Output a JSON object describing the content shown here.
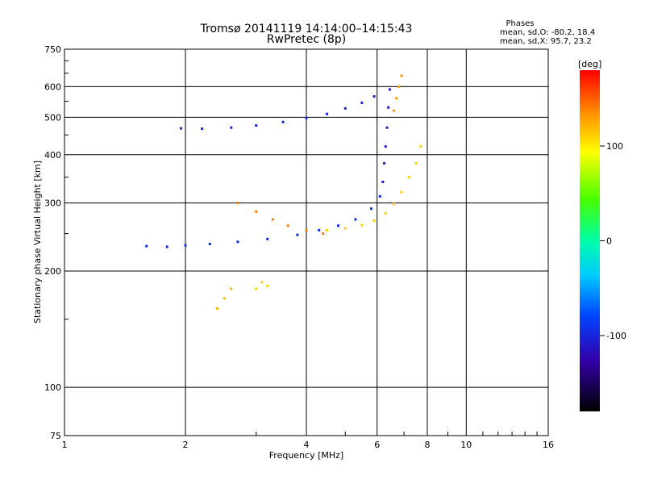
{
  "chart_data": {
    "type": "scatter",
    "title": "Tromsø 20141119 14:14:00–14:15:43",
    "subtitle": "RwPretec (8p)",
    "xlabel": "Frequency [MHz]",
    "ylabel": "Stationary phase Virtual Height [km]",
    "x_scale": "log",
    "y_scale": "log",
    "xlim": [
      1,
      16
    ],
    "ylim": [
      75,
      750
    ],
    "x_ticks": [
      1,
      2,
      4,
      6,
      8,
      10,
      16
    ],
    "x_tick_labels": [
      "1",
      "2",
      "4",
      "6",
      "8",
      "10",
      "16"
    ],
    "y_ticks": [
      75,
      100,
      200,
      300,
      400,
      500,
      600,
      750
    ],
    "y_tick_labels": [
      "75",
      "100",
      "200",
      "300",
      "400",
      "500",
      "600",
      "750"
    ],
    "grid": true,
    "phase_info": {
      "heading": "Phases",
      "line_o": "mean, sd,O: -80.2, 18.4",
      "line_x": "mean, sd,X:  95.7, 23.2"
    },
    "colorbar": {
      "label": "[deg]",
      "range": [
        -180,
        180
      ],
      "ticks": [
        100,
        0,
        -100
      ],
      "tick_labels": [
        "100",
        "0",
        "-100"
      ]
    },
    "series": [
      {
        "traces": [
          {
            "x": [
              1.95,
              2.2,
              2.6,
              3.0,
              3.5,
              4.0,
              4.5,
              5.0,
              5.5,
              5.9
            ],
            "y": [
              468,
              467,
              470,
              476,
              486,
              498,
              510,
              527,
              545,
              566
            ],
            "phase": -100
          },
          {
            "x": [
              1.6,
              1.8,
              2.0,
              2.3,
              2.7,
              3.2,
              3.8,
              4.3,
              4.8,
              5.3,
              5.8,
              6.1
            ],
            "y": [
              232,
              231,
              233,
              235,
              238,
              242,
              248,
              255,
              262,
              272,
              290,
              312
            ],
            "phase": -95
          },
          {
            "x": [
              6.2,
              6.25,
              6.3,
              6.35,
              6.4,
              6.45
            ],
            "y": [
              340,
              380,
              420,
              470,
              530,
              590
            ],
            "phase": -110
          },
          {
            "x": [
              4.5,
              5.0,
              5.5,
              5.9,
              6.3,
              6.6,
              6.9,
              7.2,
              7.5,
              7.7
            ],
            "y": [
              255,
              258,
              263,
              270,
              282,
              298,
              320,
              350,
              380,
              420
            ],
            "phase": 110
          },
          {
            "x": [
              6.6,
              6.7,
              6.8,
              6.9
            ],
            "y": [
              520,
              560,
              600,
              640
            ],
            "phase": 130
          },
          {
            "x": [
              2.7,
              3.0,
              3.3,
              3.6,
              4.0,
              4.4
            ],
            "y": [
              300,
              285,
              272,
              262,
              255,
              250
            ],
            "phase": 140
          },
          {
            "x": [
              2.4,
              2.5,
              2.6
            ],
            "y": [
              160,
              170,
              180
            ],
            "phase": 120
          },
          {
            "x": [
              3.0,
              3.1,
              3.2
            ],
            "y": [
              180,
              187,
              183
            ],
            "phase": 110
          }
        ]
      }
    ]
  }
}
